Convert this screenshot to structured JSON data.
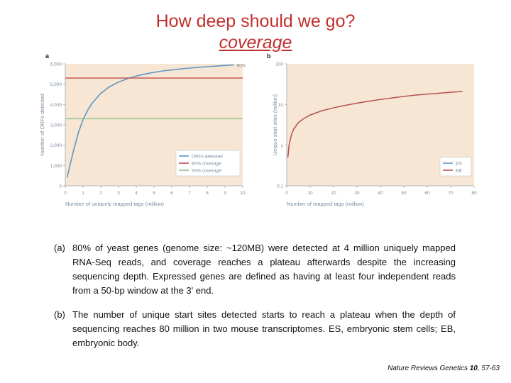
{
  "slide": {
    "title": "How deep should we go?",
    "subtitle": "coverage"
  },
  "chart_data": [
    {
      "type": "line",
      "panel_label": "a",
      "xlabel": "Number of uniquely mapped tags (million)",
      "ylabel": "Number of ORFs detected",
      "xlim": [
        0,
        10
      ],
      "ylim": [
        0,
        6000
      ],
      "x_ticks": [
        0,
        1,
        2,
        3,
        4,
        5,
        6,
        7,
        8,
        9,
        10
      ],
      "y_ticks": [
        0,
        1000,
        2000,
        3000,
        4000,
        5000,
        6000
      ],
      "y_tick_labels": [
        "0",
        "1,000",
        "2,000",
        "3,000",
        "4,000",
        "5,000",
        "6,000"
      ],
      "annotation": "90%",
      "legend_position": "bottom-right",
      "series": [
        {
          "name": "ORFs detected",
          "color": "#5f97c6",
          "x": [
            0.1,
            0.3,
            0.5,
            0.75,
            1,
            1.25,
            1.5,
            2,
            2.5,
            3,
            3.5,
            4,
            4.5,
            5,
            5.5,
            6,
            6.5,
            7,
            7.5,
            8,
            8.5,
            9,
            9.5
          ],
          "y": [
            400,
            1150,
            1850,
            2650,
            3250,
            3700,
            4050,
            4550,
            4880,
            5100,
            5270,
            5400,
            5500,
            5580,
            5650,
            5700,
            5750,
            5790,
            5830,
            5860,
            5890,
            5920,
            5950
          ]
        },
        {
          "name": "80% coverage",
          "color": "#c0504d",
          "x": [
            0,
            10
          ],
          "y": [
            5300,
            5300
          ]
        },
        {
          "name": "50% coverage",
          "color": "#8dc08a",
          "x": [
            0,
            10
          ],
          "y": [
            3300,
            3300
          ]
        }
      ]
    },
    {
      "type": "line",
      "panel_label": "b",
      "xlabel": "Number of mapped tags (million)",
      "ylabel": "Unique start sites (million)",
      "xlim": [
        0,
        80
      ],
      "ylim": [
        0.1,
        100
      ],
      "y_scale": "log",
      "x_ticks": [
        0,
        10,
        20,
        30,
        40,
        50,
        60,
        70,
        80
      ],
      "y_ticks": [
        0.1,
        1,
        10,
        100
      ],
      "y_tick_labels": [
        "0.1",
        "1",
        "10",
        "100"
      ],
      "legend_position": "bottom-right",
      "series": [
        {
          "name": "ES",
          "color": "#5f97c6",
          "x": [
            0.5,
            1,
            2,
            3,
            5,
            7,
            10,
            15,
            20,
            25,
            30,
            35,
            40,
            45,
            50,
            55,
            60,
            65,
            70,
            75
          ],
          "y": [
            0.5,
            1,
            1.8,
            2.5,
            3.6,
            4.4,
            5.5,
            7,
            8.3,
            9.5,
            10.8,
            12,
            13.3,
            14.5,
            15.8,
            17,
            18,
            19,
            20,
            21
          ]
        },
        {
          "name": "EB",
          "color": "#c0504d",
          "x": [
            0.5,
            1,
            2,
            3,
            5,
            7,
            10,
            15,
            20,
            25,
            30,
            35,
            40,
            45,
            50,
            55,
            60,
            65,
            70,
            75
          ],
          "y": [
            0.5,
            1,
            1.8,
            2.5,
            3.6,
            4.4,
            5.5,
            7,
            8.3,
            9.5,
            10.8,
            12,
            13.3,
            14.5,
            15.8,
            17,
            18,
            19,
            20,
            21
          ]
        }
      ]
    }
  ],
  "captions": {
    "a_label": "(a)",
    "a_text": "80% of yeast genes (genome size: ~120MB) were detected at 4 million uniquely mapped RNA-Seq reads, and coverage reaches a plateau afterwards despite the increasing sequencing depth. Expressed genes are defined as having at least four independent reads from a 50-bp window at the 3' end.",
    "b_label": "(b)",
    "b_text": "The number of unique start sites detected starts to reach a plateau when the depth of sequencing reaches 80 million in two mouse transcriptomes. ES, embryonic stem cells; EB, embryonic body."
  },
  "citation": {
    "journal": "Nature Reviews Genetics",
    "volume": "10",
    "pages": ", 57-63"
  }
}
